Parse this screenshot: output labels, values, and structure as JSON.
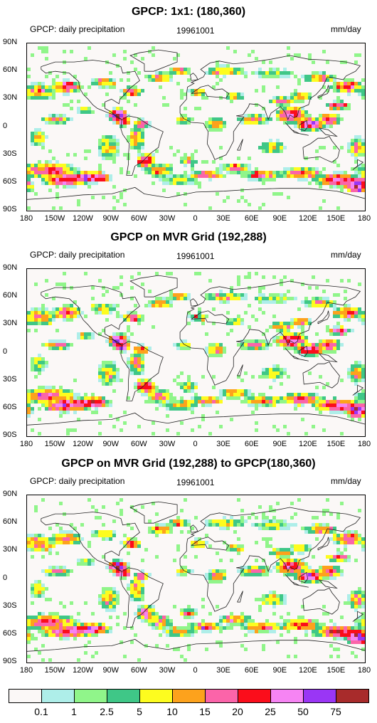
{
  "panels": [
    {
      "title": "GPCP: 1x1: (180,360)",
      "left_label": "GPCP: daily precipitation",
      "center_label": "19961001",
      "right_label": "mm/day"
    },
    {
      "title": "GPCP on MVR Grid (192,288)",
      "left_label": "GPCP: daily precipitation",
      "center_label": "19961001",
      "right_label": "mm/day"
    },
    {
      "title": "GPCP on MVR Grid (192,288) to GPCP(180,360)",
      "left_label": "GPCP: daily precipitation",
      "center_label": "19961001",
      "right_label": "mm/day"
    }
  ],
  "lat_ticks": [
    "90N",
    "60N",
    "30N",
    "0",
    "30S",
    "60S",
    "90S"
  ],
  "lon_ticks": [
    "180",
    "150W",
    "120W",
    "90W",
    "60W",
    "30W",
    "0",
    "30E",
    "60E",
    "90E",
    "120E",
    "150E",
    "180"
  ],
  "colorbar": {
    "colors": [
      "#fbf8f7",
      "#aeeee9",
      "#90f58a",
      "#3fc787",
      "#fdfc1f",
      "#fda21c",
      "#fb64a9",
      "#fb0d1b",
      "#f684f3",
      "#9a36f5",
      "#a82b2b"
    ],
    "labels": [
      "0.1",
      "1",
      "2.5",
      "5",
      "10",
      "15",
      "20",
      "25",
      "50",
      "75"
    ]
  }
}
